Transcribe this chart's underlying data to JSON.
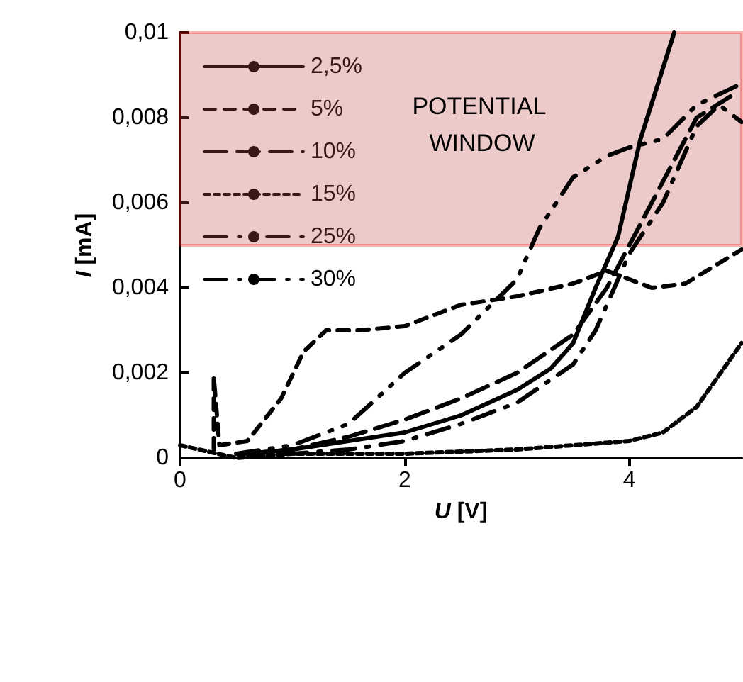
{
  "chart_data": {
    "type": "line",
    "xlabel": "U [V]",
    "ylabel": "I [mA]",
    "xlim": [
      0,
      5
    ],
    "xticks": [
      0,
      2,
      4
    ],
    "ylim": [
      0,
      0.01
    ],
    "yticks": [
      0,
      {
        "value": 0.002,
        "label": "0,002"
      },
      {
        "value": 0.004,
        "label": "0,004"
      },
      {
        "value": 0.006,
        "label": "0,006"
      },
      {
        "value": 0.008,
        "label": "0,008"
      },
      {
        "value": 0.01,
        "label": "0,01"
      }
    ],
    "grid": false,
    "legend": "top left",
    "marker": "none",
    "bands": [
      {
        "axis": "y",
        "from": 0.005,
        "to": 0.01,
        "label": "POTENTIAL WINDOW",
        "color": "#c0504d"
      }
    ],
    "series": [
      {
        "name": "2,5%",
        "color": "#000000",
        "line_style": "solid",
        "x": [
          0.6,
          1,
          1.5,
          2,
          2.5,
          3,
          3.3,
          3.5,
          3.7,
          3.9,
          4.1,
          4.4
        ],
        "values": [
          0.0001,
          0.0002,
          0.0004,
          0.0006,
          0.001,
          0.0016,
          0.0021,
          0.0027,
          0.004,
          0.0052,
          0.0075,
          0.01
        ]
      },
      {
        "name": "5%",
        "color": "#000000",
        "line_style": "dashed",
        "x": [
          0.3,
          0.3,
          0.35,
          0.6,
          0.9,
          1.1,
          1.3,
          1.6,
          2,
          2.5,
          3,
          3.5,
          3.8,
          4.2,
          4.5,
          5
        ],
        "values": [
          0.0002,
          0.0019,
          0.0003,
          0.0004,
          0.0014,
          0.0025,
          0.003,
          0.003,
          0.0031,
          0.0036,
          0.0038,
          0.0041,
          0.0044,
          0.004,
          0.0041,
          0.0049
        ]
      },
      {
        "name": "10%",
        "color": "#000000",
        "line_style": "dashed",
        "x": [
          0.6,
          1,
          1.5,
          2,
          2.5,
          3,
          3.5,
          3.8,
          4.1,
          4.4,
          4.6,
          4.9
        ],
        "values": [
          0.0001,
          0.0002,
          0.0005,
          0.0009,
          0.0014,
          0.002,
          0.0029,
          0.004,
          0.0055,
          0.007,
          0.008,
          0.0085
        ]
      },
      {
        "name": "15%",
        "color": "#000000",
        "line_style": "dotted",
        "x": [
          0,
          0.5,
          1,
          2,
          3,
          3.5,
          4,
          4.3,
          4.6,
          5
        ],
        "values": [
          0.0003,
          0,
          0.0001,
          0.0001,
          0.0002,
          0.0003,
          0.0004,
          0.0006,
          0.0012,
          0.0027
        ]
      },
      {
        "name": "25%",
        "color": "#000000",
        "line_style": "dashed",
        "x": [
          0.5,
          1,
          1.5,
          2,
          2.5,
          3,
          3.2,
          3.5,
          3.8,
          4,
          4.3,
          4.6,
          5
        ],
        "values": [
          0.0001,
          0.0003,
          0.0008,
          0.002,
          0.0029,
          0.0042,
          0.0054,
          0.0066,
          0.0071,
          0.0073,
          0.0075,
          0.0083,
          0.0088
        ]
      },
      {
        "name": "30%",
        "color": "#000000",
        "line_style": "dashed",
        "x": [
          0.5,
          1,
          1.5,
          2,
          2.5,
          3,
          3.5,
          3.7,
          4,
          4.3,
          4.6,
          4.8,
          5
        ],
        "values": [
          0.0001,
          0.0001,
          0.0002,
          0.0004,
          0.0008,
          0.0013,
          0.0022,
          0.003,
          0.0048,
          0.006,
          0.0078,
          0.0083,
          0.0079
        ]
      }
    ]
  }
}
